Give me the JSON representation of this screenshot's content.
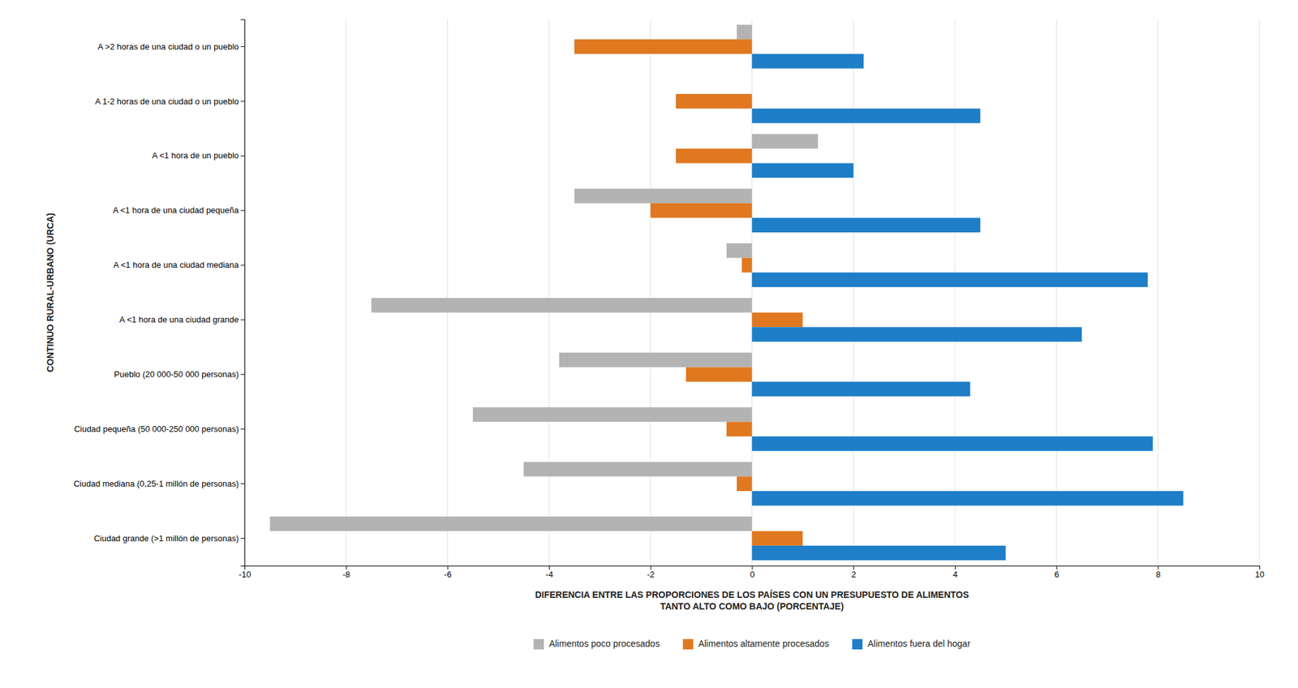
{
  "chart_data": {
    "type": "bar",
    "orientation": "horizontal",
    "categories": [
      "A >2 horas de una ciudad o un pueblo",
      "A 1-2 horas de una ciudad o un pueblo",
      "A <1 hora de un pueblo",
      "A <1 hora de una ciudad pequeña",
      "A <1 hora de una ciudad mediana",
      "A <1 hora de una ciudad grande",
      "Pueblo (20 000-50 000 personas)",
      "Ciudad pequeña (50 000-250 000 personas)",
      "Ciudad mediana (0,25-1 millón de personas)",
      "Ciudad grande (>1 millón de personas)"
    ],
    "series": [
      {
        "name": "Alimentos poco procesados",
        "color": "#b3b3b3",
        "values": [
          -0.3,
          0.0,
          1.3,
          -3.5,
          -0.5,
          -7.5,
          -3.8,
          -5.5,
          -4.5,
          -9.5
        ]
      },
      {
        "name": "Alimentos altamente procesados",
        "color": "#e07820",
        "values": [
          -3.5,
          -1.5,
          -1.5,
          -2.0,
          -0.2,
          1.0,
          -1.3,
          -0.5,
          -0.3,
          1.0
        ]
      },
      {
        "name": "Alimentos fuera del hogar",
        "color": "#1e7ec8",
        "values": [
          2.2,
          4.5,
          2.0,
          4.5,
          7.8,
          6.5,
          4.3,
          7.9,
          8.5,
          5.0
        ]
      }
    ],
    "xlabel": "DIFERENCIA ENTRE LAS PROPORCIONES DE LOS PAÍSES CON UN PRESUPUESTO DE ALIMENTOS\nTANTO ALTO COMO BAJO (PORCENTAJE)",
    "ylabel": "CONTINUO RURAL-URBANO (URCA)",
    "xlim": [
      -10,
      10
    ],
    "xticks": [
      -10,
      -8,
      -6,
      -4,
      -2,
      0,
      2,
      4,
      6,
      8,
      10
    ],
    "grid": true,
    "legend": "bottom"
  }
}
